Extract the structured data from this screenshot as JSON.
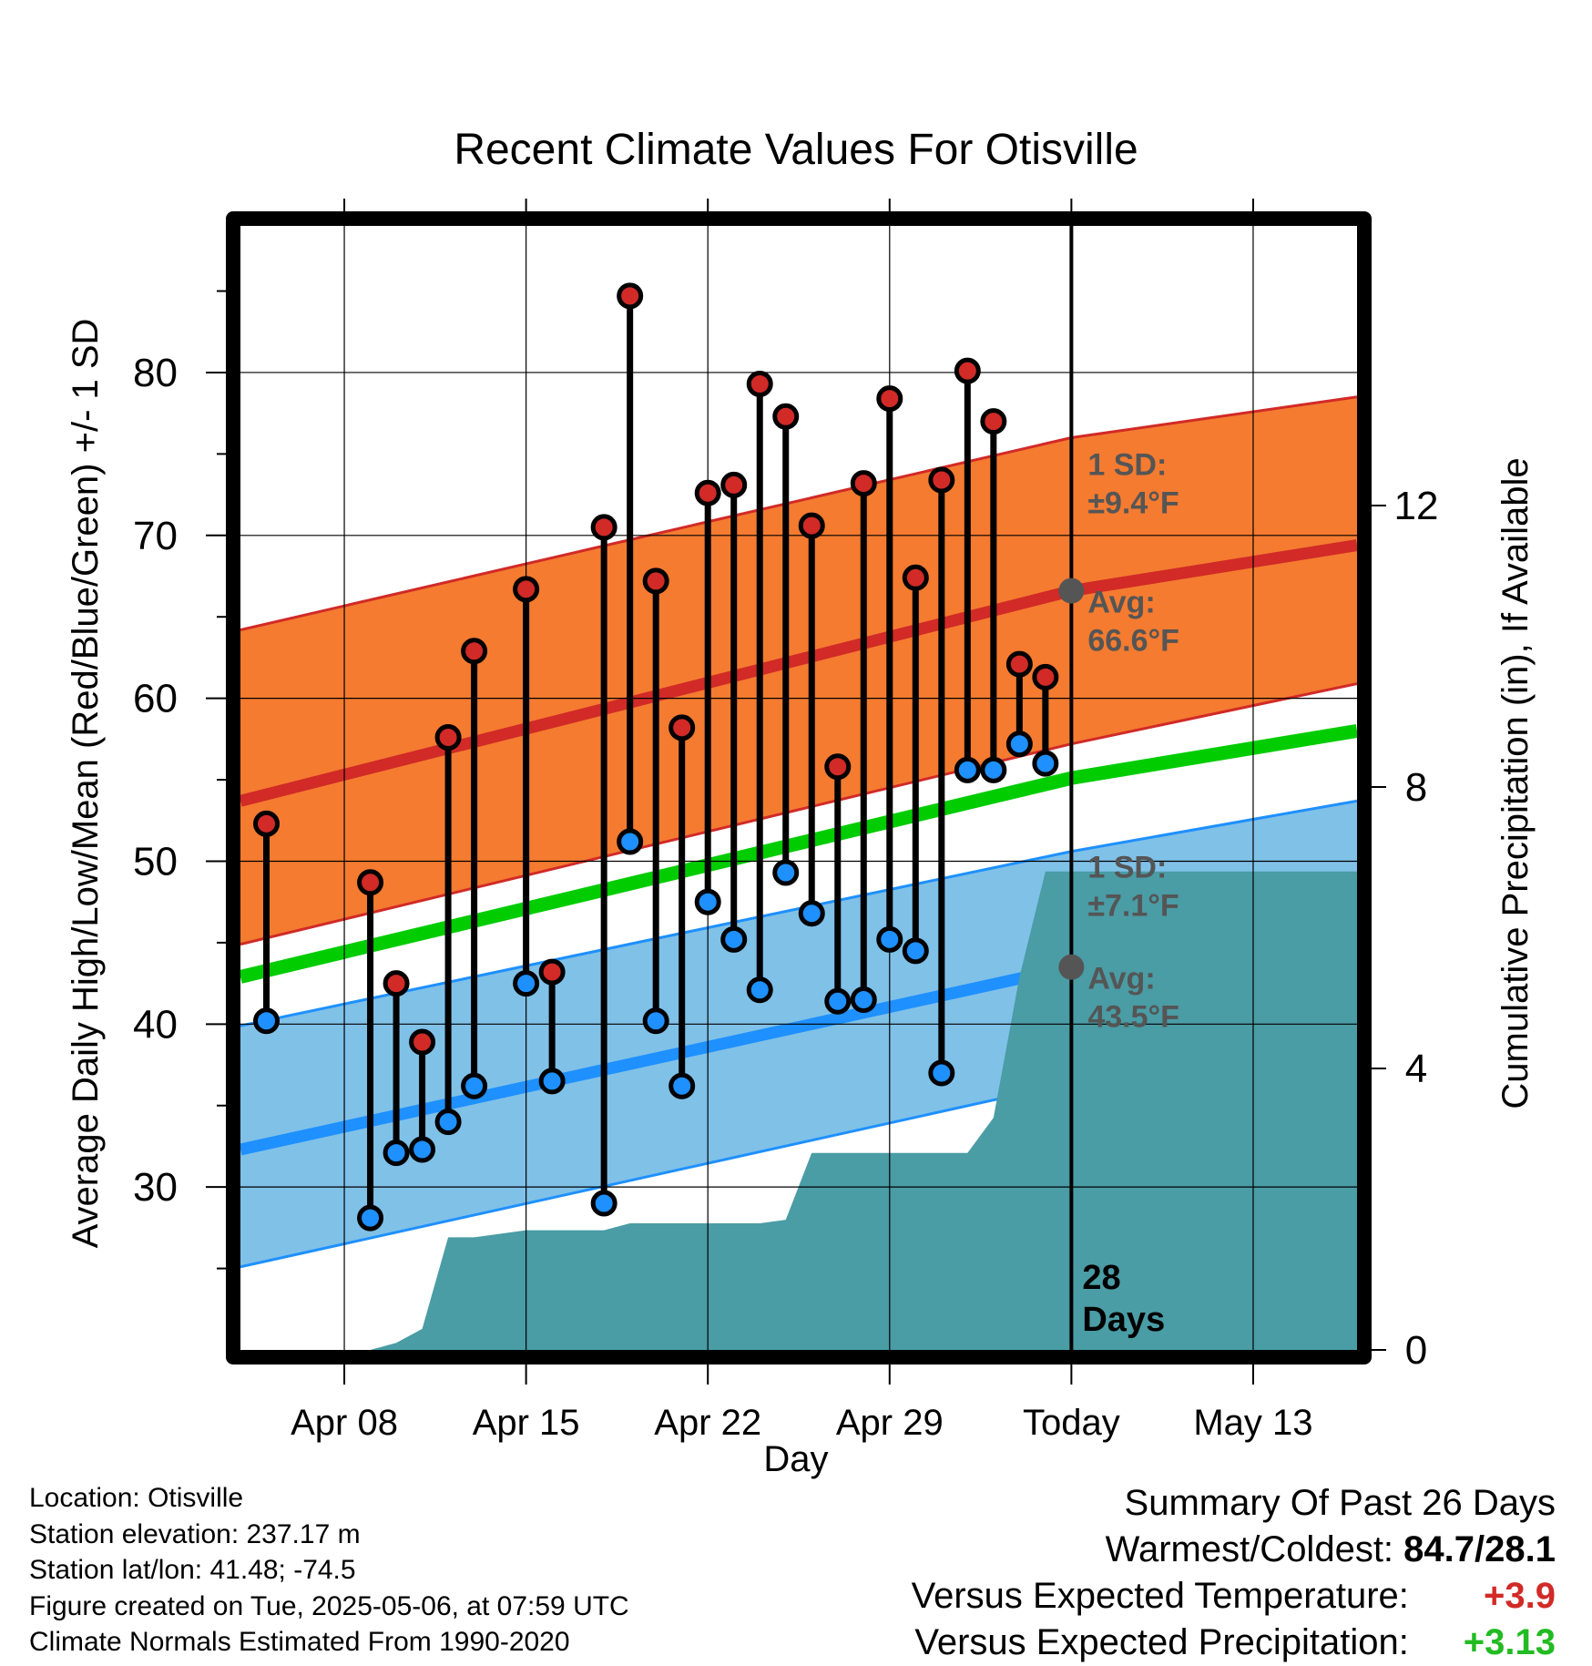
{
  "chart_data": {
    "type": "line",
    "title": "Recent Climate Values For Otisville",
    "xlabel": "Day",
    "ylabel": "Average Daily High/Low/Mean (Red/Blue/Green) +/- 1 SD",
    "y2label": "Cumulative Precipitation (in), If Available",
    "ylim": [
      20,
      89
    ],
    "y_ticks": [
      "30",
      "40",
      "50",
      "60",
      "70",
      "80"
    ],
    "y2lim": [
      0,
      16
    ],
    "y2_ticks": [
      "0",
      "4",
      "8",
      "12"
    ],
    "x_start_date": "2025-04-04",
    "x_end_date": "2025-05-17",
    "x_ticks": [
      {
        "date": "2025-04-08",
        "label": "Apr 08"
      },
      {
        "date": "2025-04-15",
        "label": "Apr 15"
      },
      {
        "date": "2025-04-22",
        "label": "Apr 22"
      },
      {
        "date": "2025-04-29",
        "label": "Apr 29"
      },
      {
        "date": "2025-05-06",
        "label": "Today"
      },
      {
        "date": "2025-05-13",
        "label": "May 13"
      }
    ],
    "grid": true,
    "today": "2025-05-06",
    "window_label": "28\nDays",
    "normals": {
      "dates": [
        "2025-04-04",
        "2025-05-06",
        "2025-05-17"
      ],
      "high_mean": [
        53.7,
        66.6,
        69.4
      ],
      "high_upper": [
        64.2,
        76.0,
        78.5
      ],
      "high_lower": [
        44.9,
        57.2,
        60.9
      ],
      "mean": [
        42.9,
        55.1,
        58.0
      ],
      "low_mean": [
        32.3,
        43.5,
        46.6
      ],
      "low_upper": [
        39.9,
        50.6,
        53.7
      ],
      "low_lower": [
        25.1,
        36.4,
        40.1
      ]
    },
    "annotations": [
      {
        "date": "2025-05-06",
        "value": 66.6,
        "sd_text": "1 SD:",
        "sd_value": "±9.4°F",
        "avg_text": "Avg:",
        "avg_value": "66.6°F",
        "sd_y": 73.7
      },
      {
        "date": "2025-05-06",
        "value": 43.5,
        "sd_text": "1 SD:",
        "sd_value": "±7.1°F",
        "avg_text": "Avg:",
        "avg_value": "43.5°F",
        "sd_y": 49.0
      }
    ],
    "series": [
      {
        "name": "High",
        "x": [
          "2025-04-05",
          "2025-04-09",
          "2025-04-10",
          "2025-04-11",
          "2025-04-12",
          "2025-04-13",
          "2025-04-15",
          "2025-04-16",
          "2025-04-18",
          "2025-04-19",
          "2025-04-20",
          "2025-04-21",
          "2025-04-22",
          "2025-04-23",
          "2025-04-24",
          "2025-04-25",
          "2025-04-26",
          "2025-04-27",
          "2025-04-28",
          "2025-04-29",
          "2025-04-30",
          "2025-05-01",
          "2025-05-02",
          "2025-05-03",
          "2025-05-04",
          "2025-05-05"
        ],
        "values": [
          52.3,
          48.7,
          42.5,
          38.9,
          57.6,
          62.9,
          66.7,
          43.2,
          70.5,
          84.7,
          67.2,
          58.2,
          72.6,
          73.1,
          79.3,
          77.3,
          70.6,
          55.8,
          73.2,
          78.4,
          67.4,
          73.4,
          80.1,
          77.0,
          62.1,
          61.3
        ]
      },
      {
        "name": "Low",
        "x": [
          "2025-04-05",
          "2025-04-09",
          "2025-04-10",
          "2025-04-11",
          "2025-04-12",
          "2025-04-13",
          "2025-04-15",
          "2025-04-16",
          "2025-04-18",
          "2025-04-19",
          "2025-04-20",
          "2025-04-21",
          "2025-04-22",
          "2025-04-23",
          "2025-04-24",
          "2025-04-25",
          "2025-04-26",
          "2025-04-27",
          "2025-04-28",
          "2025-04-29",
          "2025-04-30",
          "2025-05-01",
          "2025-05-02",
          "2025-05-03",
          "2025-05-04",
          "2025-05-05"
        ],
        "values": [
          40.2,
          28.1,
          32.1,
          32.3,
          34.0,
          36.2,
          42.5,
          36.5,
          29.0,
          51.2,
          40.2,
          36.2,
          47.5,
          45.2,
          42.1,
          49.3,
          46.8,
          41.4,
          41.5,
          45.2,
          44.5,
          37.0,
          55.6,
          55.6,
          57.2,
          56.0
        ]
      },
      {
        "name": "Cumulative Precipitation",
        "x": [
          "2025-04-04",
          "2025-04-05",
          "2025-04-06",
          "2025-04-07",
          "2025-04-08",
          "2025-04-09",
          "2025-04-10",
          "2025-04-11",
          "2025-04-12",
          "2025-04-13",
          "2025-04-14",
          "2025-04-15",
          "2025-04-16",
          "2025-04-17",
          "2025-04-18",
          "2025-04-19",
          "2025-04-20",
          "2025-04-21",
          "2025-04-22",
          "2025-04-23",
          "2025-04-24",
          "2025-04-25",
          "2025-04-26",
          "2025-04-27",
          "2025-04-28",
          "2025-04-29",
          "2025-04-30",
          "2025-05-01",
          "2025-05-02",
          "2025-05-03",
          "2025-05-04",
          "2025-05-05",
          "2025-05-06",
          "2025-05-17"
        ],
        "values": [
          0,
          0,
          0,
          0,
          0,
          0,
          0.1,
          0.3,
          1.6,
          1.6,
          1.65,
          1.7,
          1.7,
          1.7,
          1.7,
          1.8,
          1.8,
          1.8,
          1.8,
          1.8,
          1.8,
          1.85,
          2.8,
          2.8,
          2.8,
          2.8,
          2.8,
          2.8,
          2.8,
          3.3,
          5.3,
          6.8,
          6.8,
          6.8
        ]
      }
    ]
  },
  "colors": {
    "high_band": "#f47b30",
    "high_line": "#d12a27",
    "mean_line": "#00cc00",
    "low_band": "#80c1e8",
    "low_line": "#1e90ff",
    "precip": "#4a9ca5",
    "marker_high": "#d12a27",
    "marker_low": "#1e90ff",
    "annotation_text": "#555555",
    "positive_temp": "#d12a27",
    "positive_precip": "#22bb22"
  },
  "info": {
    "location": "Location: Otisville",
    "elevation": "Station elevation: 237.17 m",
    "latlon": "Station lat/lon: 41.48; -74.5",
    "created": "Figure created on Tue, 2025-05-06, at 07:59 UTC",
    "normals": "Climate Normals Estimated From 1990-2020"
  },
  "summary": {
    "title": "Summary Of Past 26 Days",
    "warmest_coldest_label": "Warmest/Coldest:",
    "warmest_coldest_value": "84.7/28.1",
    "temp_label": "Versus Expected Temperature:",
    "temp_value": "+3.9",
    "precip_label": "Versus Expected Precipitation:",
    "precip_value": "+3.13"
  }
}
